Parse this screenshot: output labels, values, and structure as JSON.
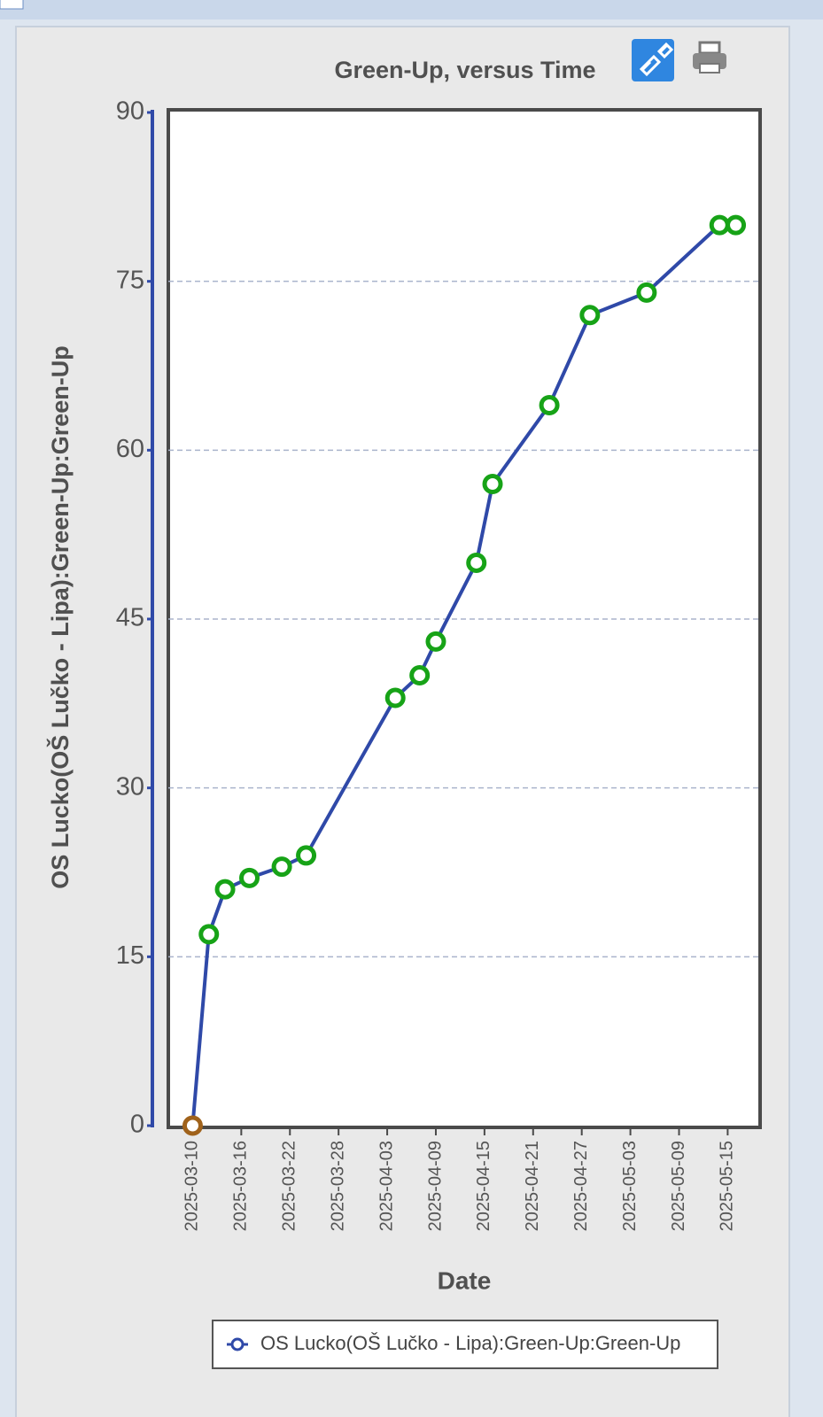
{
  "chart_data": {
    "type": "line",
    "title": "Green-Up, versus Time",
    "x_label": "Date",
    "y_label": "OS Lucko(OŠ Lučko - Lipa):Green-Up:Green-Up",
    "x": [
      "2025-03-10",
      "2025-03-12",
      "2025-03-14",
      "2025-03-17",
      "2025-03-21",
      "2025-03-24",
      "2025-04-04",
      "2025-04-07",
      "2025-04-09",
      "2025-04-14",
      "2025-04-16",
      "2025-04-23",
      "2025-04-28",
      "2025-05-05",
      "2025-05-14",
      "2025-05-16"
    ],
    "series": [
      {
        "name": "OS Lucko(OŠ Lučko - Lipa):Green-Up:Green-Up",
        "color": "#2f49a8",
        "marker_color": "#17a317",
        "point_colors": [
          "#a0621b",
          "#17a317",
          "#17a317",
          "#17a317",
          "#17a317",
          "#17a317",
          "#17a317",
          "#17a317",
          "#17a317",
          "#17a317",
          "#17a317",
          "#17a317",
          "#17a317",
          "#17a317",
          "#17a317",
          "#17a317"
        ],
        "values": [
          0,
          17,
          21,
          22,
          23,
          24,
          38,
          40,
          43,
          50,
          57,
          64,
          72,
          74,
          80,
          80
        ]
      }
    ],
    "xlim": [
      "2025-03-07",
      "2025-05-19"
    ],
    "xticks": [
      "2025-03-10",
      "2025-03-16",
      "2025-03-22",
      "2025-03-28",
      "2025-04-03",
      "2025-04-09",
      "2025-04-15",
      "2025-04-21",
      "2025-04-27",
      "2025-05-03",
      "2025-05-09",
      "2025-05-15"
    ],
    "ylim": [
      0,
      90
    ],
    "yticks": [
      0,
      15,
      30,
      45,
      60,
      75,
      90
    ],
    "grid": true,
    "legend": "bottom"
  }
}
